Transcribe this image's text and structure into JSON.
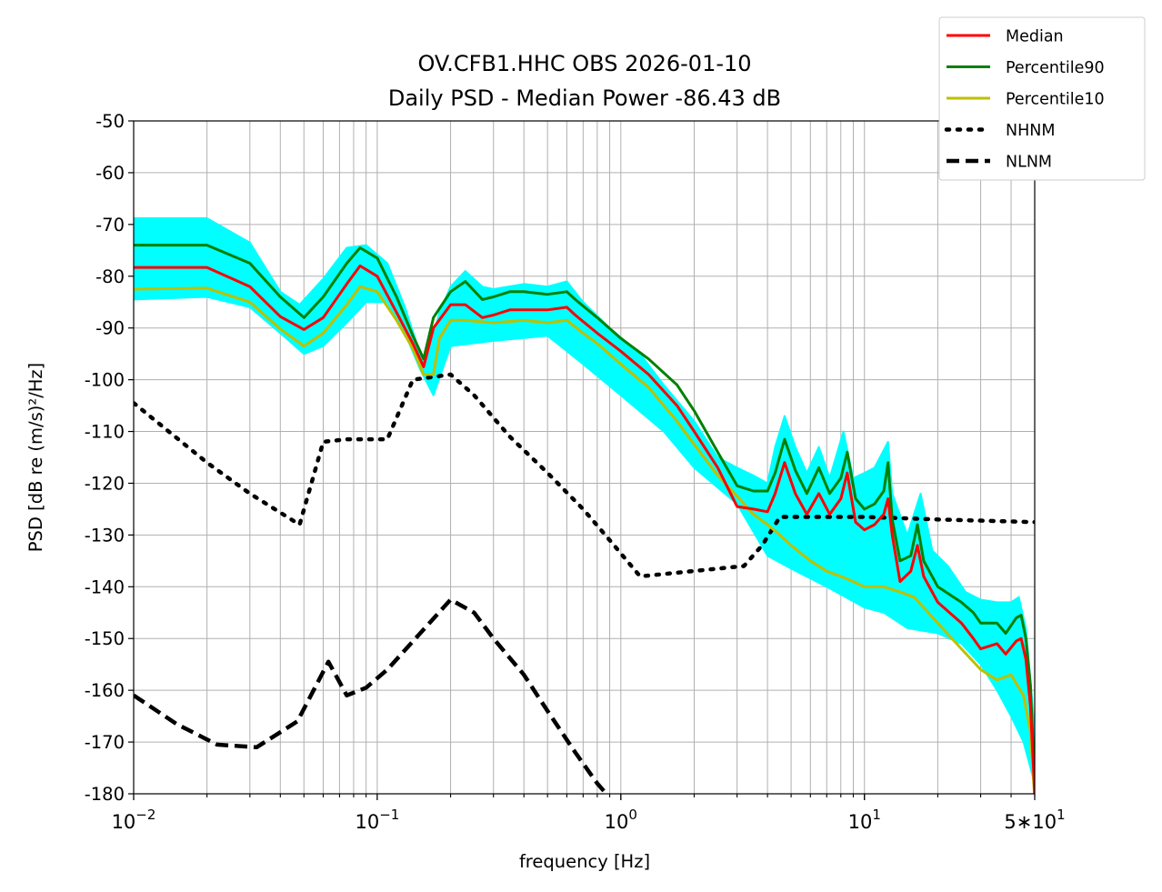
{
  "chart_data": {
    "type": "line",
    "title": "OV.CFB1.HHC OBS 2026-01-10",
    "subtitle": "Daily PSD - Median Power -86.43 dB",
    "xlabel": "frequency [Hz]",
    "ylabel": "PSD [dB re (m/s)²/Hz]",
    "xscale": "log",
    "xlim": [
      0.01,
      50
    ],
    "ylim": [
      -180,
      -50
    ],
    "grid": true,
    "legend_position": "top-right (outside axes)",
    "x_ticks": [
      {
        "value": 0.01,
        "label_base": "10",
        "label_exp": "−2"
      },
      {
        "value": 0.1,
        "label_base": "10",
        "label_exp": "−1"
      },
      {
        "value": 1,
        "label_base": "10",
        "label_exp": "0"
      },
      {
        "value": 10,
        "label_base": "10",
        "label_exp": "1"
      },
      {
        "value": 50,
        "label_base": "5∗10",
        "label_exp": "1"
      }
    ],
    "y_ticks": [
      -50,
      -60,
      -70,
      -80,
      -90,
      -100,
      -110,
      -120,
      -130,
      -140,
      -150,
      -160,
      -170,
      -180
    ],
    "legend": [
      {
        "label": "Median",
        "color": "#ff0000",
        "style": "solid"
      },
      {
        "label": "Percentile90",
        "color": "#008000",
        "style": "solid"
      },
      {
        "label": "Percentile10",
        "color": "#bfbf00",
        "style": "solid"
      },
      {
        "label": "NHNM",
        "color": "#000000",
        "style": "dotted"
      },
      {
        "label": "NLNM",
        "color": "#000000",
        "style": "dashed"
      }
    ],
    "envelope": {
      "color": "#00ffff",
      "upper": [
        [
          0.01,
          -68.8
        ],
        [
          0.02,
          -68.8
        ],
        [
          0.03,
          -73.5
        ],
        [
          0.04,
          -83
        ],
        [
          0.048,
          -85.5
        ],
        [
          0.06,
          -80.5
        ],
        [
          0.075,
          -74.5
        ],
        [
          0.09,
          -74
        ],
        [
          0.11,
          -77.5
        ],
        [
          0.13,
          -86
        ],
        [
          0.15,
          -95
        ],
        [
          0.16,
          -96.5
        ],
        [
          0.18,
          -87
        ],
        [
          0.2,
          -82
        ],
        [
          0.23,
          -79
        ],
        [
          0.27,
          -82
        ],
        [
          0.3,
          -82.5
        ],
        [
          0.4,
          -81.5
        ],
        [
          0.5,
          -82
        ],
        [
          0.6,
          -81
        ],
        [
          0.7,
          -85
        ],
        [
          0.9,
          -90
        ],
        [
          1.2,
          -95
        ],
        [
          1.5,
          -101
        ],
        [
          2,
          -108
        ],
        [
          2.5,
          -115
        ],
        [
          3,
          -117
        ],
        [
          3.5,
          -118.5
        ],
        [
          4,
          -120
        ],
        [
          4.3,
          -113
        ],
        [
          4.7,
          -107
        ],
        [
          5.2,
          -113
        ],
        [
          5.8,
          -118
        ],
        [
          6.5,
          -113
        ],
        [
          7.2,
          -119
        ],
        [
          8.2,
          -110
        ],
        [
          9,
          -119
        ],
        [
          10,
          -118
        ],
        [
          11,
          -117
        ],
        [
          12.5,
          -112
        ],
        [
          13,
          -122
        ],
        [
          15,
          -130
        ],
        [
          17,
          -122
        ],
        [
          19,
          -133
        ],
        [
          22,
          -136
        ],
        [
          26,
          -141
        ],
        [
          30,
          -142.5
        ],
        [
          35,
          -143
        ],
        [
          40,
          -143
        ],
        [
          43,
          -142
        ],
        [
          46,
          -148
        ],
        [
          48,
          -158
        ],
        [
          50,
          -168
        ]
      ],
      "lower": [
        [
          0.01,
          -84.5
        ],
        [
          0.02,
          -84
        ],
        [
          0.03,
          -86
        ],
        [
          0.04,
          -91
        ],
        [
          0.05,
          -95
        ],
        [
          0.06,
          -93.5
        ],
        [
          0.075,
          -89
        ],
        [
          0.09,
          -85
        ],
        [
          0.11,
          -85
        ],
        [
          0.13,
          -91
        ],
        [
          0.15,
          -98
        ],
        [
          0.17,
          -103
        ],
        [
          0.2,
          -93.5
        ],
        [
          0.3,
          -92.5
        ],
        [
          0.5,
          -91.5
        ],
        [
          0.7,
          -97
        ],
        [
          1,
          -103
        ],
        [
          1.5,
          -110
        ],
        [
          2,
          -117
        ],
        [
          3,
          -124
        ],
        [
          4,
          -134
        ],
        [
          5,
          -136.5
        ],
        [
          7,
          -140
        ],
        [
          10,
          -144
        ],
        [
          12,
          -145
        ],
        [
          15,
          -148
        ],
        [
          20,
          -149
        ],
        [
          25,
          -151
        ],
        [
          30,
          -155
        ],
        [
          35,
          -160
        ],
        [
          40,
          -165
        ],
        [
          45,
          -170
        ],
        [
          50,
          -178
        ]
      ]
    },
    "series": [
      {
        "name": "Median",
        "color": "#ff0000",
        "style": "solid",
        "points": [
          [
            0.01,
            -78.3
          ],
          [
            0.02,
            -78.3
          ],
          [
            0.03,
            -82
          ],
          [
            0.04,
            -87.8
          ],
          [
            0.05,
            -90.3
          ],
          [
            0.06,
            -88
          ],
          [
            0.075,
            -81.5
          ],
          [
            0.085,
            -78
          ],
          [
            0.1,
            -80
          ],
          [
            0.12,
            -87
          ],
          [
            0.14,
            -93
          ],
          [
            0.155,
            -97.5
          ],
          [
            0.17,
            -90
          ],
          [
            0.2,
            -85.5
          ],
          [
            0.23,
            -85.5
          ],
          [
            0.27,
            -88
          ],
          [
            0.3,
            -87.5
          ],
          [
            0.35,
            -86.5
          ],
          [
            0.4,
            -86.5
          ],
          [
            0.5,
            -86.5
          ],
          [
            0.6,
            -86
          ],
          [
            0.65,
            -87.5
          ],
          [
            0.8,
            -91
          ],
          [
            1,
            -94.5
          ],
          [
            1.3,
            -99
          ],
          [
            1.7,
            -105
          ],
          [
            2,
            -110
          ],
          [
            2.5,
            -117
          ],
          [
            3,
            -124.5
          ],
          [
            3.5,
            -125
          ],
          [
            4,
            -125.5
          ],
          [
            4.3,
            -122
          ],
          [
            4.7,
            -116
          ],
          [
            5.2,
            -122
          ],
          [
            5.8,
            -126
          ],
          [
            6.5,
            -122
          ],
          [
            7.2,
            -126
          ],
          [
            8,
            -123
          ],
          [
            8.5,
            -118
          ],
          [
            9.2,
            -127.5
          ],
          [
            10,
            -129
          ],
          [
            11,
            -128
          ],
          [
            12,
            -126
          ],
          [
            12.5,
            -123
          ],
          [
            13,
            -130
          ],
          [
            14,
            -139
          ],
          [
            15.5,
            -137
          ],
          [
            16.5,
            -132
          ],
          [
            17.5,
            -138
          ],
          [
            20,
            -143
          ],
          [
            25,
            -147
          ],
          [
            28,
            -150
          ],
          [
            30,
            -152
          ],
          [
            35,
            -151
          ],
          [
            38,
            -153
          ],
          [
            42,
            -150.5
          ],
          [
            44,
            -150
          ],
          [
            46,
            -154
          ],
          [
            48,
            -163
          ],
          [
            50,
            -180
          ]
        ]
      },
      {
        "name": "Percentile90",
        "color": "#008000",
        "style": "solid",
        "points": [
          [
            0.01,
            -74
          ],
          [
            0.02,
            -74
          ],
          [
            0.03,
            -77.5
          ],
          [
            0.04,
            -84
          ],
          [
            0.05,
            -88
          ],
          [
            0.06,
            -84
          ],
          [
            0.075,
            -77.5
          ],
          [
            0.085,
            -74.5
          ],
          [
            0.1,
            -76.5
          ],
          [
            0.12,
            -84
          ],
          [
            0.14,
            -91.5
          ],
          [
            0.155,
            -96
          ],
          [
            0.17,
            -88
          ],
          [
            0.2,
            -83
          ],
          [
            0.23,
            -81
          ],
          [
            0.27,
            -84.5
          ],
          [
            0.3,
            -84
          ],
          [
            0.35,
            -83
          ],
          [
            0.4,
            -83
          ],
          [
            0.5,
            -83.5
          ],
          [
            0.6,
            -83
          ],
          [
            0.65,
            -84.5
          ],
          [
            0.8,
            -88
          ],
          [
            1,
            -92
          ],
          [
            1.3,
            -96
          ],
          [
            1.7,
            -101
          ],
          [
            2,
            -106
          ],
          [
            2.5,
            -114
          ],
          [
            3,
            -120.5
          ],
          [
            3.5,
            -121.5
          ],
          [
            4,
            -121.5
          ],
          [
            4.3,
            -118
          ],
          [
            4.7,
            -111.5
          ],
          [
            5.2,
            -117.5
          ],
          [
            5.8,
            -122
          ],
          [
            6.5,
            -117
          ],
          [
            7.2,
            -122
          ],
          [
            8,
            -119
          ],
          [
            8.5,
            -114
          ],
          [
            9.2,
            -123
          ],
          [
            10,
            -125
          ],
          [
            11,
            -124
          ],
          [
            12,
            -121.5
          ],
          [
            12.5,
            -116
          ],
          [
            13,
            -127
          ],
          [
            14,
            -135
          ],
          [
            15.5,
            -134
          ],
          [
            16.5,
            -128
          ],
          [
            17.5,
            -135
          ],
          [
            20,
            -140
          ],
          [
            25,
            -143
          ],
          [
            28,
            -145
          ],
          [
            30,
            -147
          ],
          [
            35,
            -147
          ],
          [
            38,
            -149
          ],
          [
            42,
            -146
          ],
          [
            44,
            -145.5
          ],
          [
            46,
            -150
          ],
          [
            48,
            -159
          ],
          [
            50,
            -178
          ]
        ]
      },
      {
        "name": "Percentile10",
        "color": "#bfbf00",
        "style": "solid",
        "points": [
          [
            0.01,
            -82.5
          ],
          [
            0.02,
            -82.3
          ],
          [
            0.03,
            -85
          ],
          [
            0.04,
            -90.2
          ],
          [
            0.05,
            -93.5
          ],
          [
            0.06,
            -91
          ],
          [
            0.075,
            -85.5
          ],
          [
            0.085,
            -82
          ],
          [
            0.1,
            -83
          ],
          [
            0.12,
            -88.5
          ],
          [
            0.14,
            -94
          ],
          [
            0.155,
            -99
          ],
          [
            0.17,
            -99
          ],
          [
            0.18,
            -92
          ],
          [
            0.2,
            -88.5
          ],
          [
            0.23,
            -88.5
          ],
          [
            0.3,
            -89
          ],
          [
            0.4,
            -88.5
          ],
          [
            0.5,
            -89
          ],
          [
            0.6,
            -88.5
          ],
          [
            0.7,
            -91
          ],
          [
            0.8,
            -93
          ],
          [
            1,
            -97
          ],
          [
            1.3,
            -101.5
          ],
          [
            1.7,
            -108
          ],
          [
            2,
            -112.5
          ],
          [
            2.5,
            -118.5
          ],
          [
            3,
            -122.5
          ],
          [
            3.5,
            -126
          ],
          [
            4,
            -128
          ],
          [
            4.5,
            -130
          ],
          [
            5,
            -132
          ],
          [
            6,
            -135
          ],
          [
            7,
            -137
          ],
          [
            8,
            -138
          ],
          [
            9,
            -139
          ],
          [
            10,
            -140
          ],
          [
            12,
            -140
          ],
          [
            14,
            -141
          ],
          [
            16,
            -142
          ],
          [
            20,
            -147
          ],
          [
            25,
            -152
          ],
          [
            30,
            -156
          ],
          [
            35,
            -158
          ],
          [
            40,
            -157
          ],
          [
            45,
            -161
          ],
          [
            48,
            -168
          ],
          [
            50,
            -181
          ]
        ]
      },
      {
        "name": "NHNM",
        "color": "#000000",
        "style": "dotted",
        "points": [
          [
            0.01,
            -104.5
          ],
          [
            0.02,
            -116
          ],
          [
            0.03,
            -122
          ],
          [
            0.048,
            -128
          ],
          [
            0.06,
            -112
          ],
          [
            0.075,
            -111.5
          ],
          [
            0.11,
            -111.5
          ],
          [
            0.14,
            -100
          ],
          [
            0.2,
            -99
          ],
          [
            0.25,
            -103
          ],
          [
            0.35,
            -111
          ],
          [
            0.5,
            -118
          ],
          [
            0.7,
            -125
          ],
          [
            0.9,
            -131
          ],
          [
            1.2,
            -138
          ],
          [
            3.2,
            -136
          ],
          [
            3.8,
            -132
          ],
          [
            4.5,
            -126.5
          ],
          [
            10,
            -126.5
          ],
          [
            20,
            -127
          ],
          [
            50,
            -127.5
          ]
        ]
      },
      {
        "name": "NLNM",
        "color": "#000000",
        "style": "dashed",
        "points": [
          [
            0.01,
            -161
          ],
          [
            0.015,
            -166.5
          ],
          [
            0.022,
            -170.5
          ],
          [
            0.032,
            -171
          ],
          [
            0.047,
            -166
          ],
          [
            0.063,
            -154.5
          ],
          [
            0.075,
            -161
          ],
          [
            0.09,
            -159.5
          ],
          [
            0.11,
            -156
          ],
          [
            0.15,
            -149
          ],
          [
            0.2,
            -142.5
          ],
          [
            0.25,
            -145
          ],
          [
            0.3,
            -150
          ],
          [
            0.4,
            -157
          ],
          [
            0.5,
            -164
          ],
          [
            0.65,
            -172
          ],
          [
            0.8,
            -178
          ],
          [
            0.93,
            -181.5
          ]
        ]
      }
    ]
  }
}
